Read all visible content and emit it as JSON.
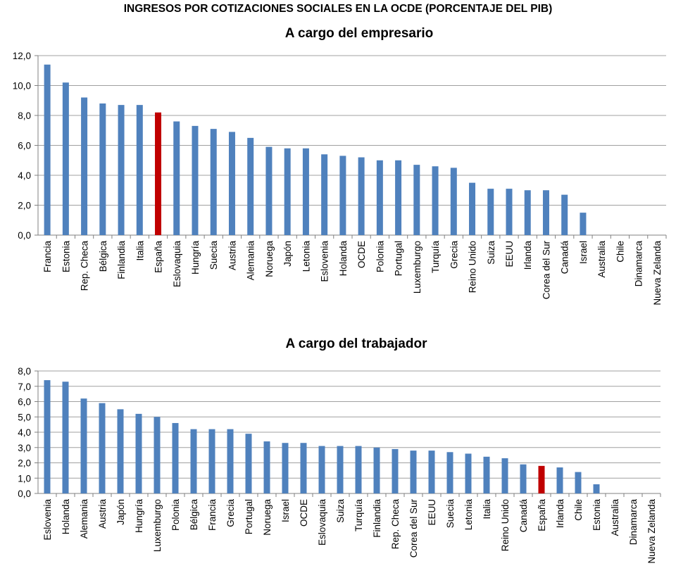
{
  "main_title": "INGRESOS POR COTIZACIONES SOCIALES EN LA OCDE (PORCENTAJE DEL PIB)",
  "colors": {
    "bar": "#4f81bd",
    "highlight": "#c00000",
    "grid": "#a0a0a0",
    "axis": "#808080"
  },
  "chart_data": [
    {
      "type": "bar",
      "title": "A cargo del empresario",
      "highlight": "España",
      "ylim": [
        0,
        12
      ],
      "yticks": [
        "0,0",
        "2,0",
        "4,0",
        "6,0",
        "8,0",
        "10,0",
        "12,0"
      ],
      "ytick_values": [
        0,
        2,
        4,
        6,
        8,
        10,
        12
      ],
      "grid": true,
      "categories": [
        "Francia",
        "Estonia",
        "Rep. Checa",
        "Bélgica",
        "Finlandia",
        "Italia",
        "España",
        "Eslovaquia",
        "Hungría",
        "Suecia",
        "Austria",
        "Alemania",
        "Noruega",
        "Japón",
        "Letonia",
        "Eslovenia",
        "Holanda",
        "OCDE",
        "Polonia",
        "Portugal",
        "Luxemburgo",
        "Turquía",
        "Grecia",
        "Reino Unido",
        "Suiza",
        "EEUU",
        "Irlanda",
        "Corea del Sur",
        "Canadá",
        "Israel",
        "Australia",
        "Chile",
        "Dinamarca",
        "Nueva Zelanda"
      ],
      "values": [
        11.4,
        10.2,
        9.2,
        8.8,
        8.7,
        8.7,
        8.2,
        7.6,
        7.3,
        7.1,
        6.9,
        6.5,
        5.9,
        5.8,
        5.8,
        5.4,
        5.3,
        5.2,
        5.0,
        5.0,
        4.7,
        4.6,
        4.5,
        3.5,
        3.1,
        3.1,
        3.0,
        3.0,
        2.7,
        1.5,
        0,
        0,
        0,
        0
      ]
    },
    {
      "type": "bar",
      "title": "A cargo del trabajador",
      "highlight": "España",
      "ylim": [
        0,
        8
      ],
      "yticks": [
        "0,0",
        "1,0",
        "2,0",
        "3,0",
        "4,0",
        "5,0",
        "6,0",
        "7,0",
        "8,0"
      ],
      "ytick_values": [
        0,
        1,
        2,
        3,
        4,
        5,
        6,
        7,
        8
      ],
      "grid": true,
      "categories": [
        "Eslovenia",
        "Holanda",
        "Alemania",
        "Austria",
        "Japón",
        "Hungría",
        "Luxemburgo",
        "Polonia",
        "Bélgica",
        "Francia",
        "Grecia",
        "Portugal",
        "Noruega",
        "Israel",
        "OCDE",
        "Eslovaquia",
        "Suiza",
        "Turquía",
        "Finlandia",
        "Rep. Checa",
        "Corea del Sur",
        "EEUU",
        "Suecia",
        "Letonia",
        "Italia",
        "Reino Unido",
        "Canadá",
        "España",
        "Irlanda",
        "Chile",
        "Estonia",
        "Australia",
        "Dinamarca",
        "Nueva Zelanda"
      ],
      "values": [
        7.4,
        7.3,
        6.2,
        5.9,
        5.5,
        5.2,
        5.0,
        4.6,
        4.2,
        4.2,
        4.2,
        3.9,
        3.4,
        3.3,
        3.3,
        3.1,
        3.1,
        3.1,
        3.0,
        2.9,
        2.8,
        2.8,
        2.7,
        2.6,
        2.4,
        2.3,
        1.9,
        1.8,
        1.7,
        1.4,
        0.6,
        0,
        0,
        0
      ]
    }
  ]
}
